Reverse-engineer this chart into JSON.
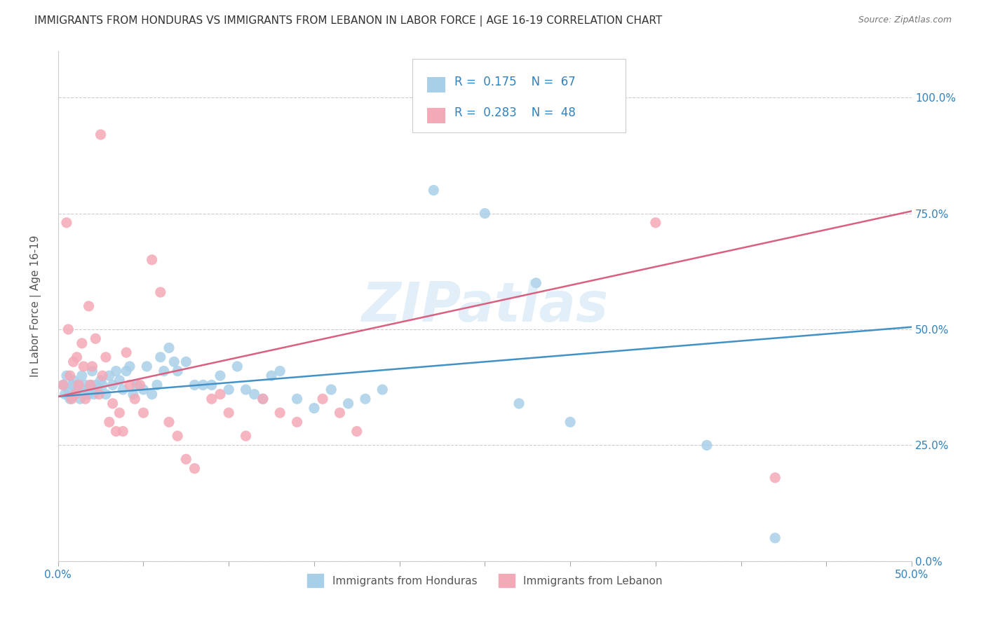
{
  "title": "IMMIGRANTS FROM HONDURAS VS IMMIGRANTS FROM LEBANON IN LABOR FORCE | AGE 16-19 CORRELATION CHART",
  "source": "Source: ZipAtlas.com",
  "ylabel": "In Labor Force | Age 16-19",
  "xlim": [
    0.0,
    0.5
  ],
  "ylim": [
    0.0,
    1.1
  ],
  "yticks": [
    0.0,
    0.25,
    0.5,
    0.75,
    1.0
  ],
  "xtick_show": [
    "0.0%",
    "50.0%"
  ],
  "legend1_R": "0.175",
  "legend1_N": "67",
  "legend2_R": "0.283",
  "legend2_N": "48",
  "blue_color": "#a8cfe8",
  "pink_color": "#f4a9b8",
  "line_blue": "#4292c6",
  "line_pink": "#d96080",
  "text_blue": "#3182bd",
  "background_color": "#ffffff",
  "grid_color": "#cccccc",
  "watermark": "ZIPatlas",
  "blue_line_y0": 0.355,
  "blue_line_y1": 0.505,
  "pink_line_y0": 0.355,
  "pink_line_y1": 0.755
}
